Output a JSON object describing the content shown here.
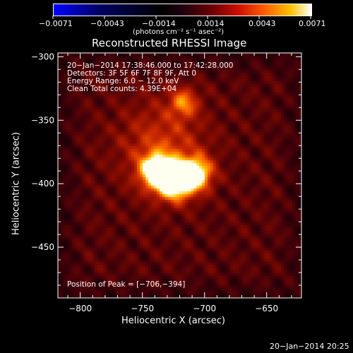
{
  "colorbar": {
    "tick_labels": [
      "−0.0071",
      "−0.0043",
      "−0.0014",
      "0.0014",
      "0.0043",
      "0.0071"
    ],
    "unit_label": "(photons cm⁻² s⁻¹ asec⁻²)",
    "gradient_colors": [
      "#0000ff",
      "#000040",
      "#000000",
      "#2a0010",
      "#800000",
      "#ff2000",
      "#ff8000",
      "#ffd000",
      "#ffffff"
    ]
  },
  "chart_data": {
    "type": "heatmap",
    "title": "Reconstructed RHESSI Image",
    "xlabel": "Heliocentric X (arcsec)",
    "ylabel": "Heliocentric Y (arcsec)",
    "xlim": [
      -818,
      -622
    ],
    "ylim": [
      -490,
      -297
    ],
    "xticks": [
      -800,
      -750,
      -700,
      -650
    ],
    "yticks": [
      -300,
      -350,
      -400,
      -450
    ],
    "xtick_labels": [
      "−800",
      "−750",
      "−700",
      "−650"
    ],
    "ytick_labels": [
      "−300",
      "−350",
      "−400",
      "−450"
    ],
    "annotations": [
      "20−Jan−2014 17:38:46.000 to 17:42:28.000",
      "Detectors: 3F 5F 6F 7F 8F 9F, Att 0",
      "Energy Range: 6.0 − 12.0 keV",
      "Clean    Total counts: 4.39E+04"
    ],
    "peak_label": "Position of Peak = [−706,−394]",
    "peak": [
      -706,
      -394
    ],
    "sources": [
      {
        "x": -725,
        "y": -397,
        "intensity": 1.0,
        "sigma": 10
      },
      {
        "x": -740,
        "y": -389,
        "intensity": 0.85,
        "sigma": 9
      },
      {
        "x": -708,
        "y": -391,
        "intensity": 0.8,
        "sigma": 9
      },
      {
        "x": -718,
        "y": -335,
        "intensity": 0.45,
        "sigma": 8
      },
      {
        "x": -735,
        "y": -370,
        "intensity": 0.35,
        "sigma": 25
      }
    ]
  },
  "footer": {
    "timestamp": "20−Jan−2014 20:25"
  }
}
